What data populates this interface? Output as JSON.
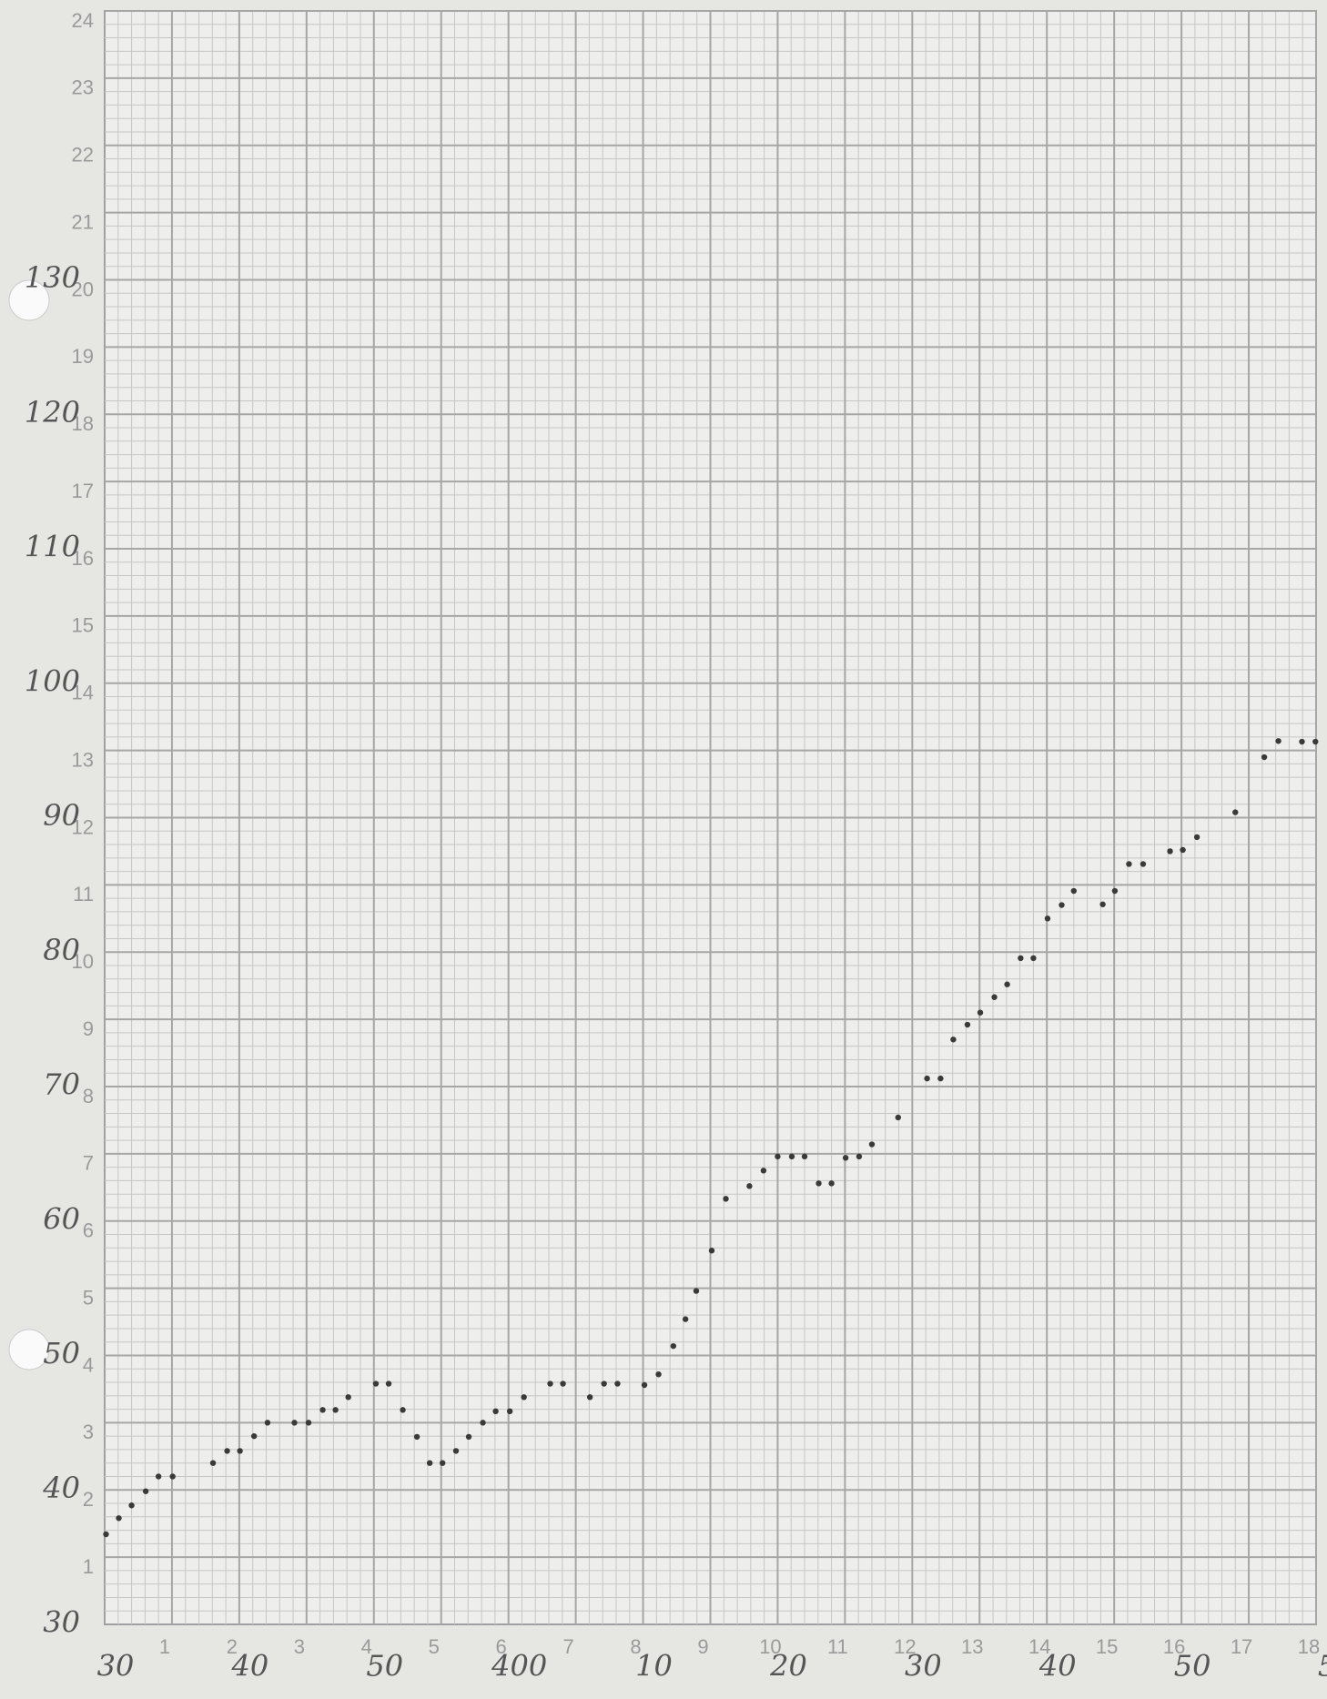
{
  "chart_data": {
    "type": "scatter",
    "x": [
      0.02,
      0.21,
      0.4,
      0.61,
      0.8,
      1.01,
      1.61,
      1.82,
      2.01,
      2.22,
      2.42,
      2.82,
      3.03,
      3.24,
      3.43,
      3.62,
      4.03,
      4.22,
      4.43,
      4.64,
      4.83,
      5.02,
      5.22,
      5.41,
      5.62,
      5.81,
      6.02,
      6.23,
      6.62,
      6.81,
      7.21,
      7.42,
      7.62,
      8.02,
      8.23,
      8.45,
      8.63,
      8.79,
      9.02,
      9.23,
      9.58,
      9.79,
      10.0,
      10.21,
      10.4,
      10.61,
      10.8,
      11.01,
      11.21,
      11.4,
      11.79,
      12.22,
      12.42,
      12.61,
      12.82,
      13.01,
      13.22,
      13.41,
      13.61,
      13.8,
      14.01,
      14.22,
      14.4,
      14.83,
      15.01,
      15.22,
      15.43,
      15.83,
      16.02,
      16.23,
      16.8,
      17.23,
      17.44,
      17.79,
      17.99
    ],
    "values": [
      1.34,
      1.58,
      1.77,
      1.98,
      2.2,
      2.2,
      2.4,
      2.58,
      2.58,
      2.8,
      3.0,
      3.0,
      3.0,
      3.19,
      3.19,
      3.38,
      3.58,
      3.58,
      3.19,
      2.79,
      2.4,
      2.4,
      2.58,
      2.79,
      3.0,
      3.17,
      3.17,
      3.38,
      3.58,
      3.58,
      3.38,
      3.58,
      3.58,
      3.56,
      3.72,
      4.14,
      4.54,
      4.96,
      5.56,
      6.33,
      6.52,
      6.75,
      6.96,
      6.96,
      6.96,
      6.56,
      6.56,
      6.94,
      6.96,
      7.14,
      7.54,
      8.12,
      8.12,
      8.7,
      8.92,
      9.1,
      9.33,
      9.52,
      9.91,
      9.91,
      10.5,
      10.7,
      10.91,
      10.71,
      10.91,
      11.31,
      11.31,
      11.5,
      11.52,
      11.71,
      12.08,
      12.9,
      13.14,
      13.13,
      13.13
    ],
    "color": "#3a3a3a",
    "xlim": [
      0,
      18
    ],
    "ylim": [
      0,
      24
    ],
    "xticks": [
      1,
      2,
      3,
      4,
      5,
      6,
      7,
      8,
      9,
      10,
      11,
      12,
      13,
      14,
      15,
      16,
      17,
      18
    ],
    "yticks": [
      1,
      2,
      3,
      4,
      5,
      6,
      7,
      8,
      9,
      10,
      11,
      12,
      13,
      14,
      15,
      16,
      17,
      18,
      19,
      20,
      21,
      22,
      23,
      24
    ],
    "x2ticks": [
      {
        "value": 0,
        "label": "30"
      },
      {
        "value": 2,
        "label": "40"
      },
      {
        "value": 4,
        "label": "50"
      },
      {
        "value": 6,
        "label": "400"
      },
      {
        "value": 8,
        "label": "10"
      },
      {
        "value": 10,
        "label": "20"
      },
      {
        "value": 12,
        "label": "30"
      },
      {
        "value": 14,
        "label": "40"
      },
      {
        "value": 16,
        "label": "50"
      },
      {
        "value": 18,
        "label": "5"
      }
    ],
    "y2ticks": [
      {
        "value": 0,
        "label": "30"
      },
      {
        "value": 2,
        "label": "40"
      },
      {
        "value": 4,
        "label": "50"
      },
      {
        "value": 6,
        "label": "60"
      },
      {
        "value": 8,
        "label": "70"
      },
      {
        "value": 10,
        "label": "80"
      },
      {
        "value": 12,
        "label": "90"
      },
      {
        "value": 14,
        "label": "100"
      },
      {
        "value": 16,
        "label": "110"
      },
      {
        "value": 18,
        "label": "120"
      },
      {
        "value": 20,
        "label": "130"
      }
    ],
    "grid": true
  }
}
